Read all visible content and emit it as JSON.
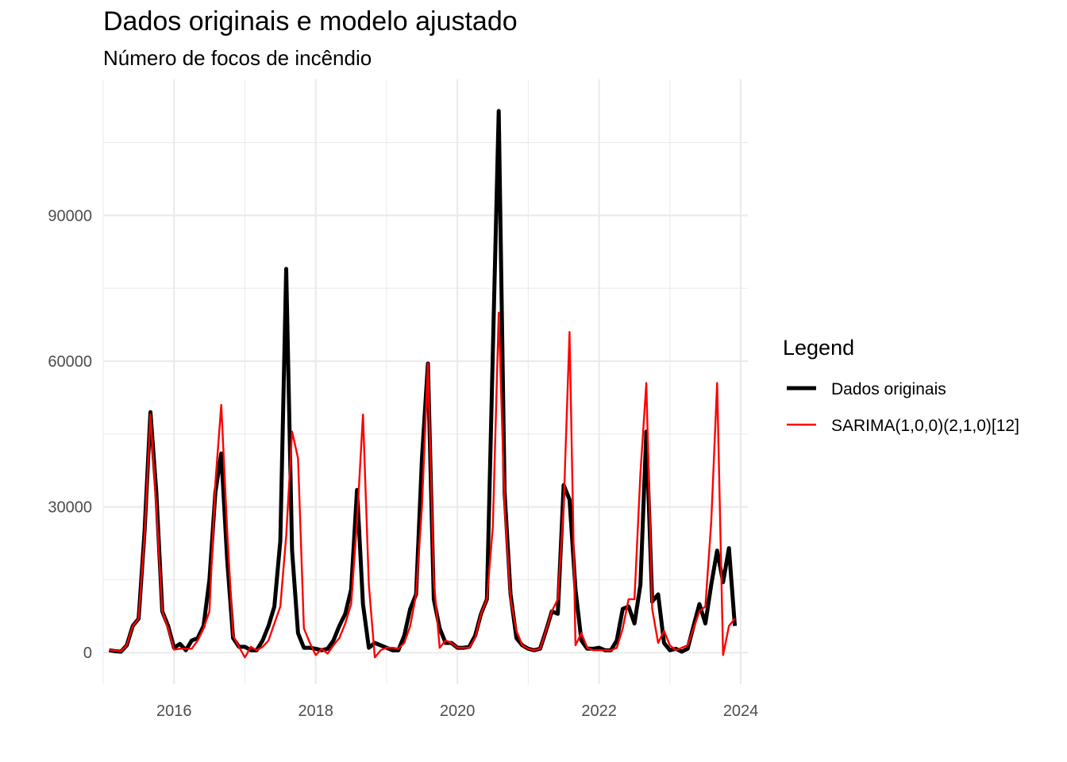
{
  "title": "Dados originais e modelo ajustado",
  "subtitle": "Número de focos de incêndio",
  "legend": {
    "title": "Legend",
    "items": [
      {
        "label": "Dados originais",
        "color": "#000000",
        "style": "thick"
      },
      {
        "label": "SARIMA(1,0,0)(2,1,0)[12]",
        "color": "#ff0000",
        "style": "thin"
      }
    ],
    "placement": "right"
  },
  "chart_data": {
    "type": "line",
    "title": "Dados originais e modelo ajustado",
    "subtitle": "Número de focos de incêndio",
    "xlabel": "",
    "ylabel": "",
    "x_ticks": [
      "2016",
      "2018",
      "2020",
      "2022",
      "2024"
    ],
    "y_ticks": [
      0,
      30000,
      60000,
      90000
    ],
    "xlim": [
      2015.0,
      2024.1
    ],
    "ylim": [
      -6500,
      118000
    ],
    "grid": true,
    "legend_placement": "right",
    "x": [
      "2015-02",
      "2015-03",
      "2015-04",
      "2015-05",
      "2015-06",
      "2015-07",
      "2015-08",
      "2015-09",
      "2015-10",
      "2015-11",
      "2015-12",
      "2016-01",
      "2016-02",
      "2016-03",
      "2016-04",
      "2016-05",
      "2016-06",
      "2016-07",
      "2016-08",
      "2016-09",
      "2016-10",
      "2016-11",
      "2016-12",
      "2017-01",
      "2017-02",
      "2017-03",
      "2017-04",
      "2017-05",
      "2017-06",
      "2017-07",
      "2017-08",
      "2017-09",
      "2017-10",
      "2017-11",
      "2017-12",
      "2018-01",
      "2018-02",
      "2018-03",
      "2018-04",
      "2018-05",
      "2018-06",
      "2018-07",
      "2018-08",
      "2018-09",
      "2018-10",
      "2018-11",
      "2018-12",
      "2019-01",
      "2019-02",
      "2019-03",
      "2019-04",
      "2019-05",
      "2019-06",
      "2019-07",
      "2019-08",
      "2019-09",
      "2019-10",
      "2019-11",
      "2019-12",
      "2020-01",
      "2020-02",
      "2020-03",
      "2020-04",
      "2020-05",
      "2020-06",
      "2020-07",
      "2020-08",
      "2020-09",
      "2020-10",
      "2020-11",
      "2020-12",
      "2021-01",
      "2021-02",
      "2021-03",
      "2021-04",
      "2021-05",
      "2021-06",
      "2021-07",
      "2021-08",
      "2021-09",
      "2021-10",
      "2021-11",
      "2021-12",
      "2022-01",
      "2022-02",
      "2022-03",
      "2022-04",
      "2022-05",
      "2022-06",
      "2022-07",
      "2022-08",
      "2022-09",
      "2022-10",
      "2022-11",
      "2022-12",
      "2023-01",
      "2023-02",
      "2023-03",
      "2023-04",
      "2023-05",
      "2023-06",
      "2023-07",
      "2023-08",
      "2023-09",
      "2023-10",
      "2023-11",
      "2023-12"
    ],
    "series": [
      {
        "name": "Dados originais",
        "color": "#000000",
        "values": [
          500,
          300,
          200,
          1500,
          5500,
          7000,
          25000,
          49500,
          33000,
          8500,
          5500,
          1000,
          1800,
          500,
          2500,
          3000,
          5500,
          15000,
          33000,
          41000,
          19000,
          3000,
          1200,
          1200,
          500,
          500,
          2500,
          5500,
          9500,
          23000,
          79000,
          21000,
          4000,
          1000,
          1000,
          800,
          500,
          800,
          2500,
          5500,
          8000,
          13000,
          33500,
          10000,
          1000,
          2000,
          1500,
          1000,
          500,
          500,
          3500,
          9000,
          12000,
          40000,
          59500,
          11000,
          5000,
          2000,
          2000,
          1000,
          1000,
          1200,
          3500,
          8000,
          11000,
          62000,
          111500,
          33000,
          12000,
          3000,
          1500,
          800,
          500,
          800,
          4500,
          8500,
          8000,
          34500,
          31500,
          13000,
          2500,
          800,
          800,
          1000,
          500,
          500,
          2500,
          9000,
          9500,
          6000,
          14000,
          45500,
          10500,
          12000,
          2000,
          500,
          800,
          200,
          800,
          5500,
          10000,
          6000,
          14000,
          21000,
          14500,
          21500,
          5500
        ]
      },
      {
        "name": "SARIMA(1,0,0)(2,1,0)[12]",
        "color": "#ff0000",
        "values": [
          600,
          400,
          300,
          1500,
          5500,
          7000,
          24000,
          49000,
          30000,
          8500,
          5000,
          600,
          800,
          800,
          800,
          2500,
          5000,
          8500,
          35000,
          51000,
          25000,
          3500,
          1200,
          -1000,
          1200,
          500,
          1200,
          2500,
          6000,
          9500,
          24000,
          45500,
          40000,
          5000,
          2000,
          -500,
          800,
          -200,
          1500,
          3000,
          6000,
          10000,
          27000,
          49000,
          14000,
          -1000,
          500,
          1000,
          1000,
          800,
          2000,
          5500,
          12000,
          30000,
          59500,
          15000,
          1000,
          2500,
          2000,
          1000,
          1000,
          1000,
          3000,
          8000,
          11000,
          26000,
          70000,
          30000,
          11000,
          4500,
          1500,
          800,
          500,
          800,
          4500,
          8500,
          11000,
          30000,
          66000,
          1500,
          4000,
          1000,
          500,
          500,
          500,
          500,
          1000,
          5000,
          11000,
          11000,
          37000,
          55500,
          9000,
          2000,
          4500,
          1500,
          500,
          1000,
          1500,
          5000,
          8500,
          9500,
          27000,
          55500,
          -500,
          5500,
          7000
        ]
      }
    ]
  }
}
